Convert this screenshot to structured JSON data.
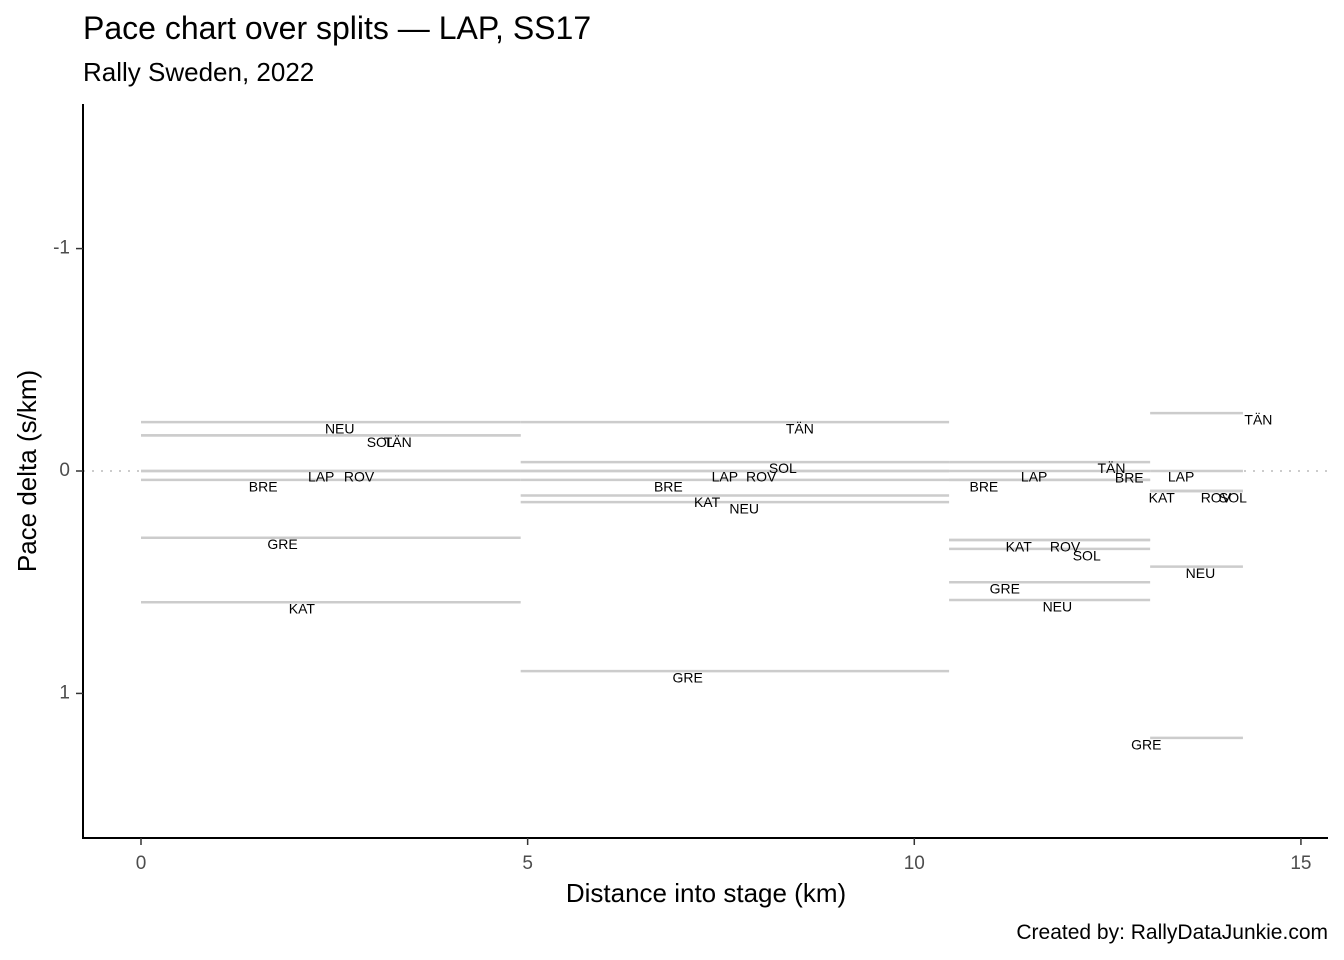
{
  "title": "Pace chart over splits — LAP, SS17",
  "subtitle": "Rally Sweden, 2022",
  "caption": "Created by: RallyDataJunkie.com",
  "chart_data": {
    "type": "line",
    "title": "Pace chart over splits — LAP, SS17",
    "subtitle": "Rally Sweden, 2022",
    "xlabel": "Distance into stage (km)",
    "ylabel": "Pace delta (s/km)",
    "xlim": [
      -0.75,
      15.35
    ],
    "ylim": [
      -1.65,
      1.65
    ],
    "y_reversed": true,
    "x_ticks": [
      0,
      5,
      10,
      15
    ],
    "y_ticks": [
      -1,
      0,
      1
    ],
    "y_tick_labels": [
      "-1",
      "0",
      "1"
    ],
    "reference_line": {
      "y": 0,
      "style": "dotted",
      "color": "#cccccc"
    },
    "grid": false,
    "segment_color": "#cccccc",
    "splits": [
      {
        "start": 0,
        "end": 4.91,
        "drivers": [
          {
            "name": "NEU",
            "pace": -0.22,
            "label_x": 2.57,
            "label_y": -0.185
          },
          {
            "name": "SOL",
            "pace": -0.16,
            "label_x": 3.1,
            "label_y": -0.125
          },
          {
            "name": "TÄN",
            "pace": -0.16,
            "label_x": 3.32,
            "label_y": -0.125
          },
          {
            "name": "LAP",
            "pace": 0.0,
            "label_x": 2.33,
            "label_y": 0.03
          },
          {
            "name": "ROV",
            "pace": 0.0,
            "label_x": 2.82,
            "label_y": 0.03
          },
          {
            "name": "BRE",
            "pace": 0.04,
            "label_x": 1.58,
            "label_y": 0.075
          },
          {
            "name": "GRE",
            "pace": 0.3,
            "label_x": 1.83,
            "label_y": 0.335
          },
          {
            "name": "KAT",
            "pace": 0.59,
            "label_x": 2.08,
            "label_y": 0.625
          }
        ]
      },
      {
        "start": 4.91,
        "end": 10.45,
        "drivers": [
          {
            "name": "TÄN",
            "pace": -0.22,
            "label_x": 8.52,
            "label_y": -0.185
          },
          {
            "name": "SOL",
            "pace": -0.04,
            "label_x": 8.3,
            "label_y": -0.007
          },
          {
            "name": "LAP",
            "pace": 0.0,
            "label_x": 7.55,
            "label_y": 0.03
          },
          {
            "name": "ROV",
            "pace": 0.0,
            "label_x": 8.02,
            "label_y": 0.03
          },
          {
            "name": "BRE",
            "pace": 0.04,
            "label_x": 6.82,
            "label_y": 0.075
          },
          {
            "name": "KAT",
            "pace": 0.11,
            "label_x": 7.32,
            "label_y": 0.145
          },
          {
            "name": "NEU",
            "pace": 0.14,
            "label_x": 7.8,
            "label_y": 0.175
          },
          {
            "name": "GRE",
            "pace": 0.9,
            "label_x": 7.07,
            "label_y": 0.935
          }
        ]
      },
      {
        "start": 10.45,
        "end": 13.05,
        "drivers": [
          {
            "name": "TÄN",
            "pace": -0.04,
            "label_x": 12.55,
            "label_y": -0.007
          },
          {
            "name": "LAP",
            "pace": 0.0,
            "label_x": 11.55,
            "label_y": 0.03
          },
          {
            "name": "BRE",
            "pace": 0.04,
            "label_x": 10.9,
            "label_y": 0.075
          },
          {
            "name": "BRE",
            "pace": 0.04,
            "label_x": 12.78,
            "label_y": 0.035
          },
          {
            "name": "KAT",
            "pace": 0.31,
            "label_x": 11.35,
            "label_y": 0.345
          },
          {
            "name": "ROV",
            "pace": 0.31,
            "label_x": 11.95,
            "label_y": 0.345
          },
          {
            "name": "SOL",
            "pace": 0.35,
            "label_x": 12.23,
            "label_y": 0.385
          },
          {
            "name": "GRE",
            "pace": 0.5,
            "label_x": 11.17,
            "label_y": 0.535
          },
          {
            "name": "NEU",
            "pace": 0.58,
            "label_x": 11.85,
            "label_y": 0.615
          }
        ]
      },
      {
        "start": 13.05,
        "end": 14.25,
        "drivers": [
          {
            "name": "TÄN",
            "pace": -0.26,
            "label_x": 14.45,
            "label_y": -0.225
          },
          {
            "name": "LAP",
            "pace": 0.0,
            "label_x": 13.45,
            "label_y": 0.03
          },
          {
            "name": "KAT",
            "pace": 0.09,
            "label_x": 13.2,
            "label_y": 0.125
          },
          {
            "name": "ROV",
            "pace": 0.09,
            "label_x": 13.9,
            "label_y": 0.125
          },
          {
            "name": "SOL",
            "pace": 0.09,
            "label_x": 14.12,
            "label_y": 0.125
          },
          {
            "name": "NEU",
            "pace": 0.43,
            "label_x": 13.7,
            "label_y": 0.465
          },
          {
            "name": "GRE",
            "pace": 1.2,
            "label_x": 13.0,
            "label_y": 1.235
          }
        ]
      }
    ]
  }
}
